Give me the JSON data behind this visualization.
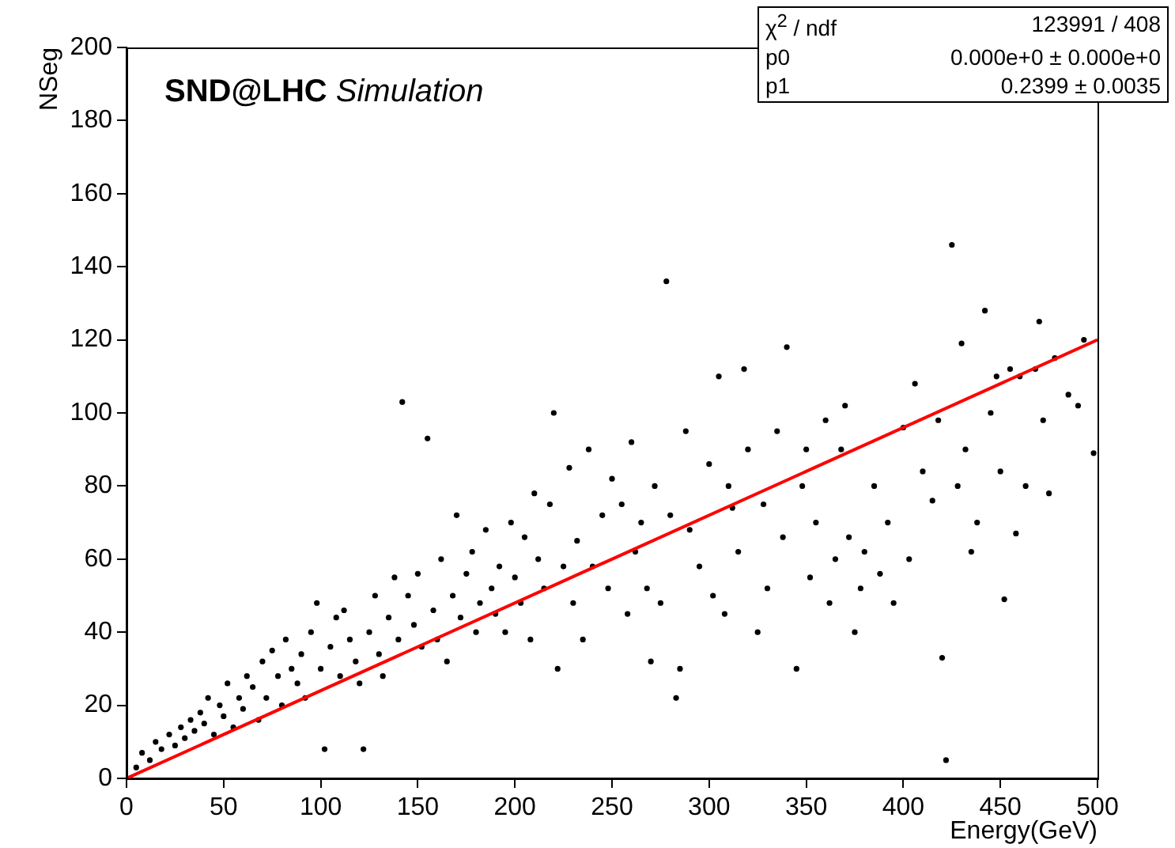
{
  "chart_data": {
    "type": "scatter",
    "title": "SND@LHC",
    "subtitle": "Simulation",
    "xlabel": "Energy(GeV)",
    "ylabel": "NSeg",
    "xlim": [
      0,
      500
    ],
    "xticks": [
      0,
      50,
      100,
      150,
      200,
      250,
      300,
      350,
      400,
      450,
      500
    ],
    "ylim": [
      0,
      200
    ],
    "yticks": [
      0,
      20,
      40,
      60,
      80,
      100,
      120,
      140,
      160,
      180,
      200
    ],
    "grid": false,
    "legend": false,
    "marker": "circle",
    "annotations": [
      "χ$^{2}$ / ndf",
      "123991 / 408",
      "p0",
      "0.000e+0 ± 0.000e+0",
      "p1",
      "0.2399 ± 0.0035"
    ],
    "series": [
      {
        "type": "scatter",
        "color": "#000000",
        "x": [
          5,
          8,
          12,
          15,
          18,
          22,
          25,
          28,
          30,
          33,
          35,
          38,
          40,
          42,
          45,
          48,
          50,
          52,
          55,
          58,
          60,
          62,
          65,
          68,
          70,
          72,
          75,
          78,
          80,
          82,
          85,
          88,
          90,
          92,
          95,
          98,
          100,
          102,
          105,
          108,
          110,
          112,
          115,
          118,
          120,
          122,
          125,
          128,
          130,
          132,
          135,
          138,
          140,
          142,
          145,
          148,
          150,
          152,
          155,
          158,
          160,
          162,
          165,
          168,
          170,
          172,
          175,
          178,
          180,
          182,
          185,
          188,
          190,
          192,
          195,
          198,
          200,
          203,
          205,
          208,
          210,
          212,
          215,
          218,
          220,
          222,
          225,
          228,
          230,
          232,
          235,
          238,
          240,
          245,
          248,
          250,
          255,
          258,
          260,
          262,
          265,
          268,
          270,
          272,
          275,
          278,
          280,
          283,
          285,
          288,
          290,
          295,
          300,
          302,
          305,
          308,
          310,
          312,
          315,
          318,
          320,
          325,
          328,
          330,
          335,
          338,
          340,
          345,
          348,
          350,
          352,
          355,
          360,
          362,
          365,
          368,
          370,
          372,
          375,
          378,
          380,
          385,
          388,
          392,
          395,
          400,
          403,
          406,
          410,
          415,
          418,
          420,
          422,
          425,
          428,
          430,
          432,
          435,
          438,
          442,
          445,
          448,
          450,
          452,
          455,
          458,
          460,
          463,
          468,
          470,
          472,
          475,
          478,
          485,
          490,
          493,
          498
        ],
        "values": [
          3,
          7,
          5,
          10,
          8,
          12,
          9,
          14,
          11,
          16,
          13,
          18,
          15,
          22,
          12,
          20,
          17,
          26,
          14,
          22,
          19,
          28,
          25,
          16,
          32,
          22,
          35,
          28,
          20,
          38,
          30,
          26,
          34,
          22,
          40,
          48,
          30,
          8,
          36,
          44,
          28,
          46,
          38,
          32,
          26,
          8,
          40,
          50,
          34,
          28,
          44,
          55,
          38,
          103,
          50,
          42,
          56,
          36,
          93,
          46,
          38,
          60,
          32,
          50,
          72,
          44,
          56,
          62,
          40,
          48,
          68,
          52,
          45,
          58,
          40,
          70,
          55,
          48,
          66,
          38,
          78,
          60,
          52,
          75,
          100,
          30,
          58,
          85,
          48,
          65,
          38,
          90,
          58,
          72,
          52,
          82,
          75,
          45,
          92,
          62,
          70,
          52,
          32,
          80,
          48,
          136,
          72,
          22,
          30,
          95,
          68,
          58,
          86,
          50,
          110,
          45,
          80,
          74,
          62,
          112,
          90,
          40,
          75,
          52,
          95,
          66,
          118,
          30,
          80,
          90,
          55,
          70,
          98,
          48,
          60,
          90,
          102,
          66,
          40,
          52,
          62,
          80,
          56,
          70,
          48,
          96,
          60,
          108,
          84,
          76,
          98,
          33,
          5,
          146,
          80,
          119,
          90,
          62,
          70,
          128,
          100,
          110,
          84,
          49,
          112,
          67,
          110,
          80,
          112,
          125,
          98,
          78,
          115,
          105,
          102,
          120,
          89
        ]
      },
      {
        "type": "line",
        "color": "#ff0000",
        "marker": "none",
        "x": [
          0,
          500
        ],
        "values": [
          0,
          120
        ]
      }
    ]
  }
}
